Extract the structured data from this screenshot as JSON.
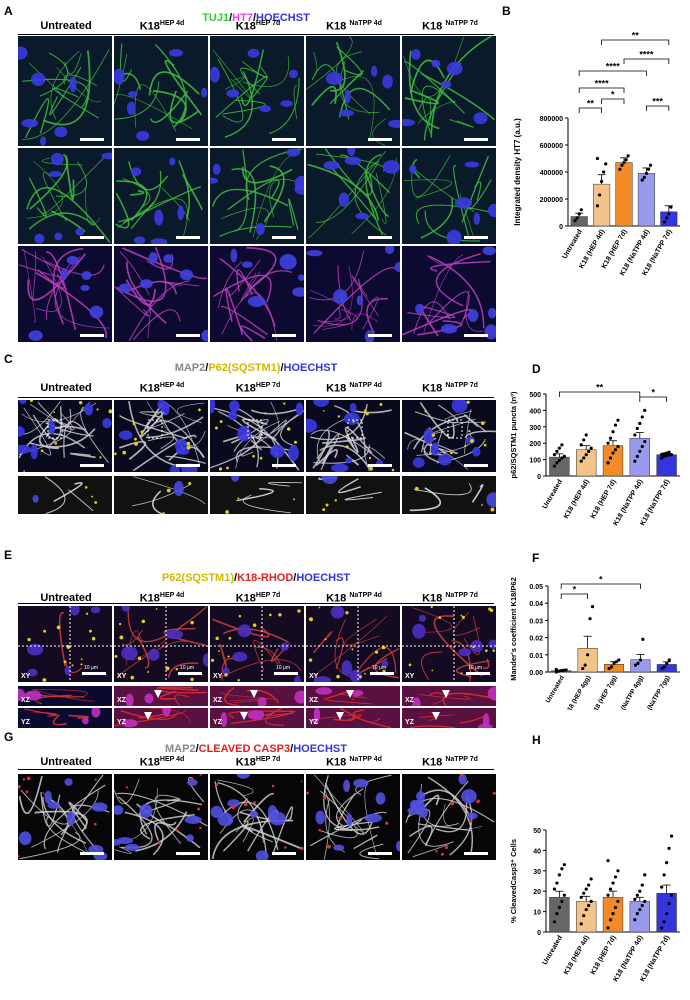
{
  "panels": {
    "A": {
      "label": "A",
      "title": [
        {
          "text": "TUJ1",
          "color": "#33cc33"
        },
        {
          "text": "/",
          "color": "#000000"
        },
        {
          "text": "HT7",
          "color": "#e040e0"
        },
        {
          "text": "/",
          "color": "#000000"
        },
        {
          "text": "HOECHST",
          "color": "#3333dd"
        }
      ],
      "columns": [
        {
          "main": "Untreated",
          "sup": ""
        },
        {
          "main": "K18",
          "sup": "HEP 4d"
        },
        {
          "main": "K18",
          "sup": "HEP 7d"
        },
        {
          "main": "K18 ",
          "sup": "NaTPP 4d"
        },
        {
          "main": "K18 ",
          "sup": "NaTPP 7d"
        }
      ],
      "rows": [
        {
          "bg": "#0a1a2a",
          "fiber": "#3fbf3f",
          "nuc": "#3a3ae0"
        },
        {
          "bg": "#0a1a2a",
          "fiber": "#3fbf3f",
          "nuc": "#3a3ae0"
        },
        {
          "bg": "#0c0a30",
          "fiber": "#c040c0",
          "nuc": "#4040e0"
        }
      ]
    },
    "B": {
      "label": "B"
    },
    "C": {
      "label": "C",
      "title": [
        {
          "text": "MAP2",
          "color": "#888888"
        },
        {
          "text": "/",
          "color": "#000000"
        },
        {
          "text": "P62(SQSTM1)",
          "color": "#d4b800"
        },
        {
          "text": "/",
          "color": "#000000"
        },
        {
          "text": "HOECHST",
          "color": "#3333dd"
        }
      ],
      "columns": [
        {
          "main": "Untreated",
          "sup": ""
        },
        {
          "main": "K18",
          "sup": "HEP 4d"
        },
        {
          "main": "K18",
          "sup": "HEP 7d"
        },
        {
          "main": "K18 ",
          "sup": "NaTPP 4d"
        },
        {
          "main": "K18 ",
          "sup": "NaTPP 7d"
        }
      ]
    },
    "D": {
      "label": "D"
    },
    "E": {
      "label": "E",
      "title": [
        {
          "text": "P62(SQSTM1)",
          "color": "#d4b800"
        },
        {
          "text": "/",
          "color": "#000000"
        },
        {
          "text": "K18-RHOD",
          "color": "#e02020"
        },
        {
          "text": "/",
          "color": "#000000"
        },
        {
          "text": "HOECHST",
          "color": "#3333dd"
        }
      ],
      "columns": [
        {
          "main": "Untreated",
          "sup": ""
        },
        {
          "main": "K18",
          "sup": "HEP 4d"
        },
        {
          "main": "K18",
          "sup": "HEP 7d"
        },
        {
          "main": "K18 ",
          "sup": "NaTPP 4d"
        },
        {
          "main": "K18 ",
          "sup": "NaTPP 7d"
        }
      ],
      "orth_labels": [
        "XY",
        "XZ",
        "YZ"
      ],
      "scale_text": "10 μm"
    },
    "F": {
      "label": "F"
    },
    "G": {
      "label": "G",
      "title": [
        {
          "text": "MAP2",
          "color": "#888888"
        },
        {
          "text": "/",
          "color": "#000000"
        },
        {
          "text": "CLEAVED CASP3",
          "color": "#e02020"
        },
        {
          "text": "/",
          "color": "#000000"
        },
        {
          "text": "HOECHST",
          "color": "#3333dd"
        }
      ],
      "columns": [
        {
          "main": "Untreated",
          "sup": ""
        },
        {
          "main": "K18",
          "sup": "HEP 4d"
        },
        {
          "main": "K18",
          "sup": "HEP 7d"
        },
        {
          "main": "K18 ",
          "sup": "NaTPP 4d"
        },
        {
          "main": "K18 ",
          "sup": "NaTPP 7d"
        }
      ]
    },
    "H": {
      "label": "H"
    }
  },
  "chart_data": [
    {
      "panel": "B",
      "type": "bar",
      "ylabel": "Integrated density HT7 (a.u.)",
      "categories": [
        "Untreated",
        "K18 (HEP 4d)",
        "K18 (HEP 7d)",
        "K18 (NaTPP 4d)",
        "K18 (NaTPP 7d)"
      ],
      "values": [
        70000,
        310000,
        470000,
        390000,
        105000
      ],
      "errors": [
        25000,
        70000,
        35000,
        40000,
        45000
      ],
      "colors": [
        "#666666",
        "#f2c48a",
        "#f28a28",
        "#9999ee",
        "#3535dd"
      ],
      "points": [
        [
          40000,
          60000,
          90000,
          120000
        ],
        [
          150000,
          230000,
          330000,
          400000,
          460000,
          500000
        ],
        [
          420000,
          450000,
          470000,
          490000,
          520000
        ],
        [
          340000,
          360000,
          390000,
          420000,
          450000
        ],
        [
          30000,
          60000,
          90000,
          140000
        ]
      ],
      "ylim": [
        0,
        800000
      ],
      "yticks": [
        0,
        200000,
        400000,
        600000,
        800000
      ],
      "ytick_labels": [
        "0",
        "200000",
        "400000",
        "600000",
        "800000"
      ],
      "significance": [
        {
          "from": 0,
          "to": 1,
          "text": "**"
        },
        {
          "from": 1,
          "to": 2,
          "text": "*"
        },
        {
          "from": 3,
          "to": 4,
          "text": "***"
        },
        {
          "from": 0,
          "to": 2,
          "text": "****"
        },
        {
          "from": 0,
          "to": 3,
          "text": "****"
        },
        {
          "from": 2,
          "to": 4,
          "text": "****"
        },
        {
          "from": 1,
          "to": 4,
          "text": "**"
        }
      ]
    },
    {
      "panel": "D",
      "type": "bar",
      "ylabel": "p62/SQSTM1 puncta (nº)",
      "categories": [
        "Untreated",
        "K18 (HEP 4d)",
        "K18 (HEP 7d)",
        "K18 (NaTPP 4d)",
        "K18 (NaTPP 7d)"
      ],
      "values": [
        115,
        160,
        185,
        230,
        130
      ],
      "errors": [
        20,
        25,
        30,
        35,
        8
      ],
      "colors": [
        "#666666",
        "#f2c48a",
        "#f28a28",
        "#9999ee",
        "#3535dd"
      ],
      "points": [
        [
          60,
          80,
          95,
          110,
          120,
          130,
          150,
          170,
          190
        ],
        [
          90,
          110,
          130,
          150,
          170,
          190,
          220,
          250
        ],
        [
          80,
          110,
          140,
          160,
          180,
          200,
          230,
          270,
          310,
          340
        ],
        [
          90,
          120,
          150,
          180,
          210,
          250,
          290,
          320,
          360,
          400
        ],
        [
          110,
          120,
          125,
          128,
          130,
          132,
          135,
          140,
          145
        ]
      ],
      "ylim": [
        0,
        500
      ],
      "yticks": [
        0,
        100,
        200,
        300,
        400,
        500
      ],
      "ytick_labels": [
        "0",
        "100",
        "200",
        "300",
        "400",
        "500"
      ],
      "significance": [
        {
          "from": 0,
          "to": 3,
          "text": "**"
        },
        {
          "from": 3,
          "to": 4,
          "text": "*"
        }
      ]
    },
    {
      "panel": "F",
      "type": "bar",
      "ylabel": "Mander's coefficient K18/P62",
      "categories": [
        "Untreated",
        "K18 (HEP 4gg)",
        "K18 (HEP 7gg)",
        "K18 (NaTPP 4gg)",
        "K18 (NaTPP 7gg)"
      ],
      "values": [
        0.0008,
        0.0138,
        0.0045,
        0.0072,
        0.0044
      ],
      "errors": [
        0.0004,
        0.007,
        0.0015,
        0.003,
        0.0015
      ],
      "colors": [
        "#666666",
        "#f2c48a",
        "#f28a28",
        "#9999ee",
        "#3535dd"
      ],
      "points": [
        [
          0,
          0.0004,
          0.0008,
          0.001,
          0.0012,
          0.0015
        ],
        [
          0.002,
          0.004,
          0.01,
          0.031,
          0.038
        ],
        [
          0.002,
          0.003,
          0.005,
          0.006,
          0.007
        ],
        [
          0.004,
          0.005,
          0.007,
          0.019
        ],
        [
          0.002,
          0.003,
          0.005,
          0.007
        ]
      ],
      "ylim": [
        0,
        0.05
      ],
      "yticks": [
        0,
        0.01,
        0.02,
        0.03,
        0.04,
        0.05
      ],
      "ytick_labels": [
        "0.00",
        "0.01",
        "0.02",
        "0.03",
        "0.04",
        "0.05"
      ],
      "significance": [
        {
          "from": 0,
          "to": 1,
          "text": "*"
        },
        {
          "from": 0,
          "to": 3,
          "text": "*"
        }
      ]
    },
    {
      "panel": "H",
      "type": "bar",
      "ylabel": "% CleavedCasp3⁺ Cells",
      "categories": [
        "Untreated",
        "K18 (HEP 4d)",
        "K18 (HEP 7d)",
        "K18 (NaTPP 4d)",
        "K18 (NaTPP 7d)"
      ],
      "values": [
        17,
        15,
        17,
        15,
        19
      ],
      "errors": [
        3,
        2.5,
        3,
        2,
        4
      ],
      "colors": [
        "#666666",
        "#f2c48a",
        "#f28a28",
        "#9999ee",
        "#3535dd"
      ],
      "points": [
        [
          5,
          9,
          12,
          15,
          18,
          21,
          24,
          28,
          31,
          33
        ],
        [
          4,
          8,
          11,
          13,
          15,
          17,
          19,
          21,
          23,
          26
        ],
        [
          2,
          6,
          9,
          12,
          15,
          18,
          21,
          24,
          27,
          30,
          35
        ],
        [
          6,
          9,
          11,
          13,
          15,
          16,
          18,
          20,
          23,
          28
        ],
        [
          2,
          5,
          9,
          14,
          18,
          22,
          28,
          34,
          41,
          47
        ]
      ],
      "ylim": [
        0,
        50
      ],
      "yticks": [
        0,
        10,
        20,
        30,
        40,
        50
      ],
      "ytick_labels": [
        "0",
        "10",
        "20",
        "30",
        "40",
        "50"
      ],
      "significance": []
    }
  ]
}
